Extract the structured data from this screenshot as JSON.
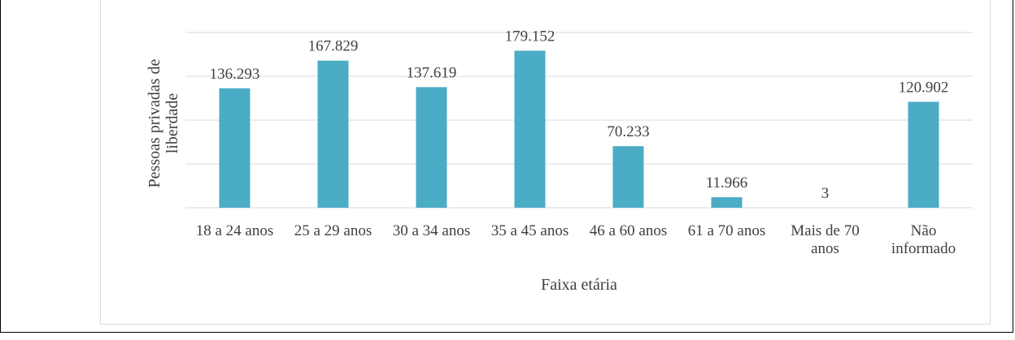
{
  "chart_data": {
    "type": "bar",
    "categories": [
      "18 a 24 anos",
      "25 a 29 anos",
      "30 a 34 anos",
      "35 a 45 anos",
      "46 a 60 anos",
      "61 a 70 anos",
      "Mais de 70 anos",
      "Não informado"
    ],
    "values": [
      136293,
      167829,
      137619,
      179152,
      70233,
      11966,
      3,
      120902
    ],
    "value_labels": [
      "136.293",
      "167.829",
      "137.619",
      "179.152",
      "70.233",
      "11.966",
      "3",
      "120.902"
    ],
    "color": "#4bacc6",
    "xlabel": "Faixa etária",
    "ylabel": "Pessoas privadas de liberdade",
    "ylim": [
      0,
      200000
    ],
    "yticks": [
      0,
      50000,
      100000,
      150000,
      200000
    ],
    "grid": true
  }
}
